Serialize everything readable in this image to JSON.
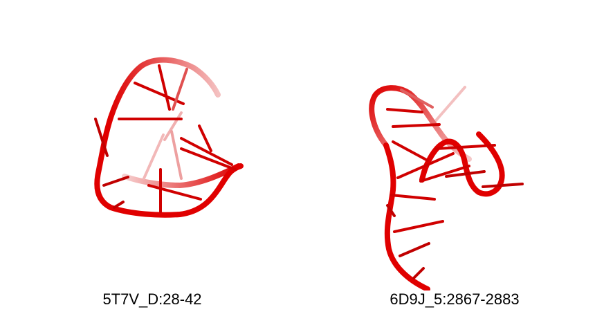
{
  "structures": [
    {
      "id": "left",
      "label": "5T7V_D:28-42"
    },
    {
      "id": "right",
      "label": "6D9J_5:2867-2883"
    }
  ],
  "colors": {
    "backbone": "#e00000",
    "backbone_light": "#f0a0a0",
    "base": "#cc0000",
    "background": "#ffffff"
  }
}
